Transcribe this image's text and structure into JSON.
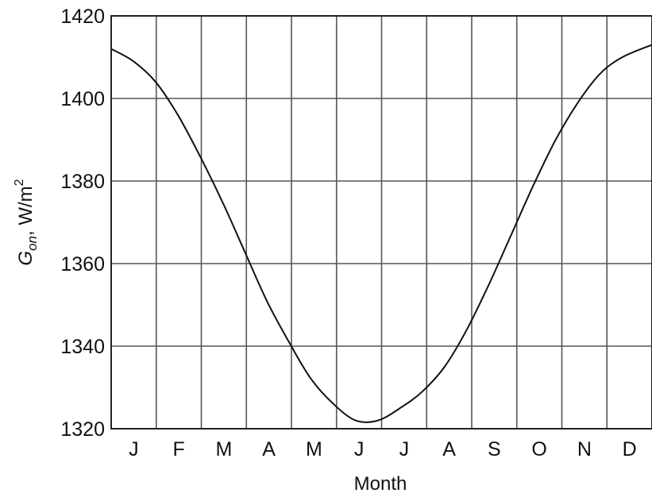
{
  "chart_data": {
    "type": "line",
    "ylabel": {
      "symbol": "G",
      "subscript": "on",
      "unit": ", W/m",
      "exponent": "2"
    },
    "xlabel": "Month",
    "ylim": [
      1320,
      1420
    ],
    "yticks": [
      1320,
      1340,
      1360,
      1380,
      1400,
      1420
    ],
    "xlim": [
      0,
      365
    ],
    "months": [
      "J",
      "F",
      "M",
      "A",
      "M",
      "J",
      "J",
      "A",
      "S",
      "O",
      "N",
      "D"
    ],
    "grid": true,
    "series": [
      {
        "x": [
          0,
          15,
          30,
          45,
          60,
          75,
          90,
          105,
          120,
          135,
          150,
          165,
          180,
          195,
          210,
          225,
          240,
          255,
          270,
          285,
          300,
          315,
          330,
          345,
          365
        ],
        "y": [
          1412,
          1409,
          1404,
          1396,
          1386,
          1375,
          1363,
          1351,
          1341,
          1332,
          1326,
          1322,
          1322,
          1325,
          1329,
          1335,
          1344,
          1355,
          1367,
          1379,
          1390,
          1399,
          1406,
          1410,
          1413
        ]
      }
    ]
  }
}
